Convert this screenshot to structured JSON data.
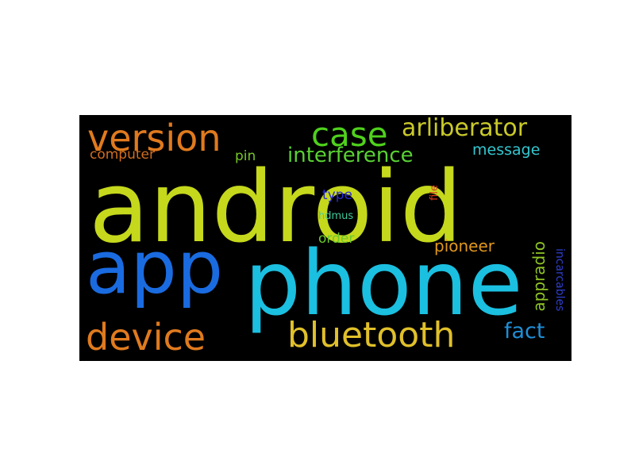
{
  "word_cloud": {
    "background": "#000000",
    "words": [
      {
        "id": "android",
        "text": "android",
        "color": "#c5d81c"
      },
      {
        "id": "phone",
        "text": "phone",
        "color": "#1bbfe0"
      },
      {
        "id": "app",
        "text": "app",
        "color": "#1a6be0"
      },
      {
        "id": "version",
        "text": "version",
        "color": "#e07a1e"
      },
      {
        "id": "case",
        "text": "case",
        "color": "#4fd11c"
      },
      {
        "id": "arliberator",
        "text": "arliberator",
        "color": "#c9c92a"
      },
      {
        "id": "interference",
        "text": "interference",
        "color": "#59d133"
      },
      {
        "id": "message",
        "text": "message",
        "color": "#33c6cf"
      },
      {
        "id": "computer",
        "text": "computer",
        "color": "#d36d1e"
      },
      {
        "id": "pin",
        "text": "pin",
        "color": "#76c72a"
      },
      {
        "id": "type",
        "text": "type",
        "color": "#2a2ad6"
      },
      {
        "id": "file",
        "text": "file",
        "color": "#d63b1e"
      },
      {
        "id": "hdmus",
        "text": "hdmus",
        "color": "#3fc99b"
      },
      {
        "id": "order",
        "text": "order",
        "color": "#6bc92e"
      },
      {
        "id": "pioneer",
        "text": "pioneer",
        "color": "#e0981c"
      },
      {
        "id": "appradio",
        "text": "appradio",
        "color": "#8fc425"
      },
      {
        "id": "incarcables",
        "text": "incarcables",
        "color": "#2f3fcf"
      },
      {
        "id": "device",
        "text": "device",
        "color": "#e07a1e"
      },
      {
        "id": "bluetooth",
        "text": "bluetooth",
        "color": "#e0c02a"
      },
      {
        "id": "fact",
        "text": "fact",
        "color": "#1f8ed6"
      }
    ]
  }
}
